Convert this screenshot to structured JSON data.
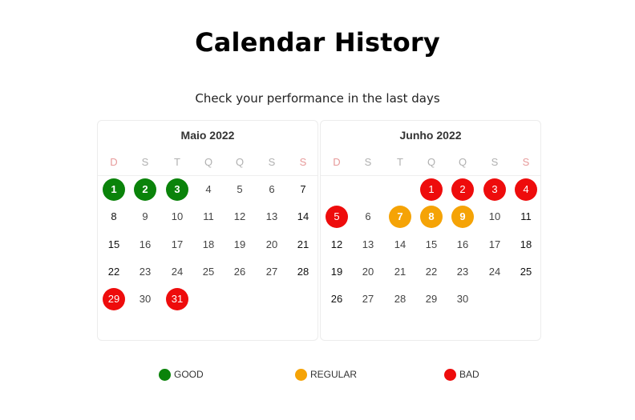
{
  "page": {
    "title": "Calendar History",
    "subtitle": "Check your performance in the last days"
  },
  "status_colors": {
    "good": "#0a830a",
    "regular": "#f5a306",
    "bad": "#ee0c0c"
  },
  "calendars": [
    {
      "month_label": "Maio 2022",
      "weekdays": [
        "D",
        "S",
        "T",
        "Q",
        "Q",
        "S",
        "S"
      ],
      "first_weekday": 0,
      "days_in_month": 31,
      "marked_days": [
        {
          "day": 1,
          "status": "good"
        },
        {
          "day": 2,
          "status": "good"
        },
        {
          "day": 3,
          "status": "good"
        },
        {
          "day": 29,
          "status": "bad"
        },
        {
          "day": 31,
          "status": "bad"
        }
      ]
    },
    {
      "month_label": "Junho 2022",
      "weekdays": [
        "D",
        "S",
        "T",
        "Q",
        "Q",
        "S",
        "S"
      ],
      "first_weekday": 3,
      "days_in_month": 30,
      "marked_days": [
        {
          "day": 1,
          "status": "bad"
        },
        {
          "day": 2,
          "status": "bad"
        },
        {
          "day": 3,
          "status": "bad"
        },
        {
          "day": 4,
          "status": "bad"
        },
        {
          "day": 5,
          "status": "bad"
        },
        {
          "day": 7,
          "status": "regular"
        },
        {
          "day": 8,
          "status": "regular"
        },
        {
          "day": 9,
          "status": "regular"
        }
      ]
    }
  ],
  "legend": [
    {
      "label": "GOOD",
      "status": "good"
    },
    {
      "label": "REGULAR",
      "status": "regular"
    },
    {
      "label": "BAD",
      "status": "bad"
    }
  ]
}
